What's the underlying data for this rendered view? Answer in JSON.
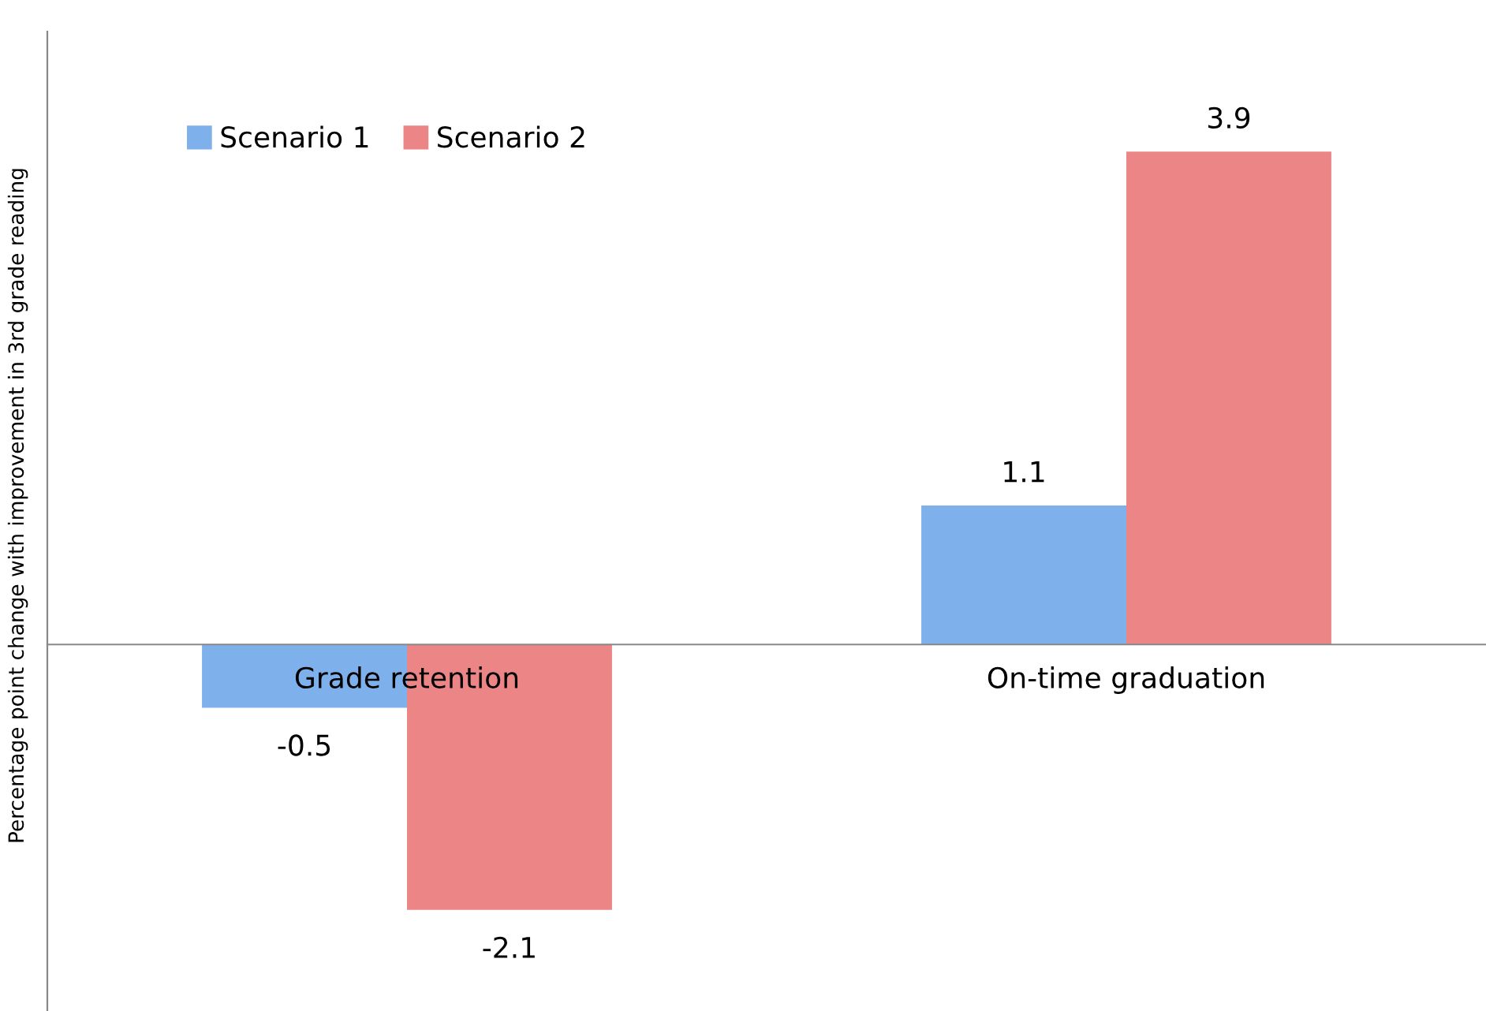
{
  "chart_data": {
    "type": "bar",
    "ylabel": "Percentage point change with improvement in 3rd grade reading",
    "categories": [
      "Grade retention",
      "On-time graduation"
    ],
    "series": [
      {
        "name": "Scenario 1",
        "color": "#7eb1ec",
        "values": [
          -0.5,
          1.1
        ]
      },
      {
        "name": "Scenario 2",
        "color": "#ec8585",
        "values": [
          -2.1,
          3.9
        ]
      }
    ],
    "ylim": [
      -2.9,
      4.85
    ],
    "tick_labels": "x",
    "data_labels": true,
    "grid": false,
    "legend": "top left"
  }
}
